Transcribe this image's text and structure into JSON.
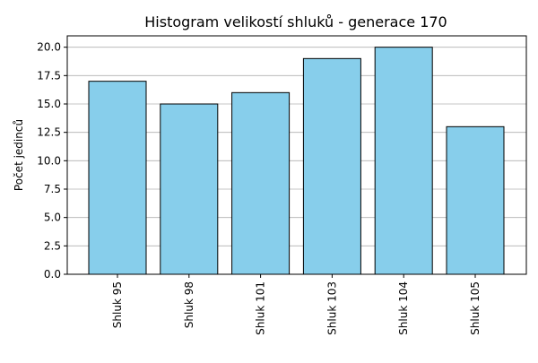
{
  "chart_data": {
    "type": "bar",
    "title": "Histogram velikostí shluků - generace 170",
    "xlabel": "",
    "ylabel": "Počet jedinců",
    "categories": [
      "Shluk 95",
      "Shluk 98",
      "Shluk 101",
      "Shluk 103",
      "Shluk 104",
      "Shluk 105"
    ],
    "values": [
      17,
      15,
      16,
      19,
      20,
      13
    ],
    "ylim": [
      0,
      21
    ],
    "yticks": [
      "0.0",
      "2.5",
      "5.0",
      "7.5",
      "10.0",
      "12.5",
      "15.0",
      "17.5",
      "20.0"
    ],
    "grid": "horizontal",
    "colors": {
      "bar_fill": "#87ceeb",
      "bar_edge": "#000000",
      "grid": "#b0b0b0",
      "axes": "#000000"
    }
  }
}
